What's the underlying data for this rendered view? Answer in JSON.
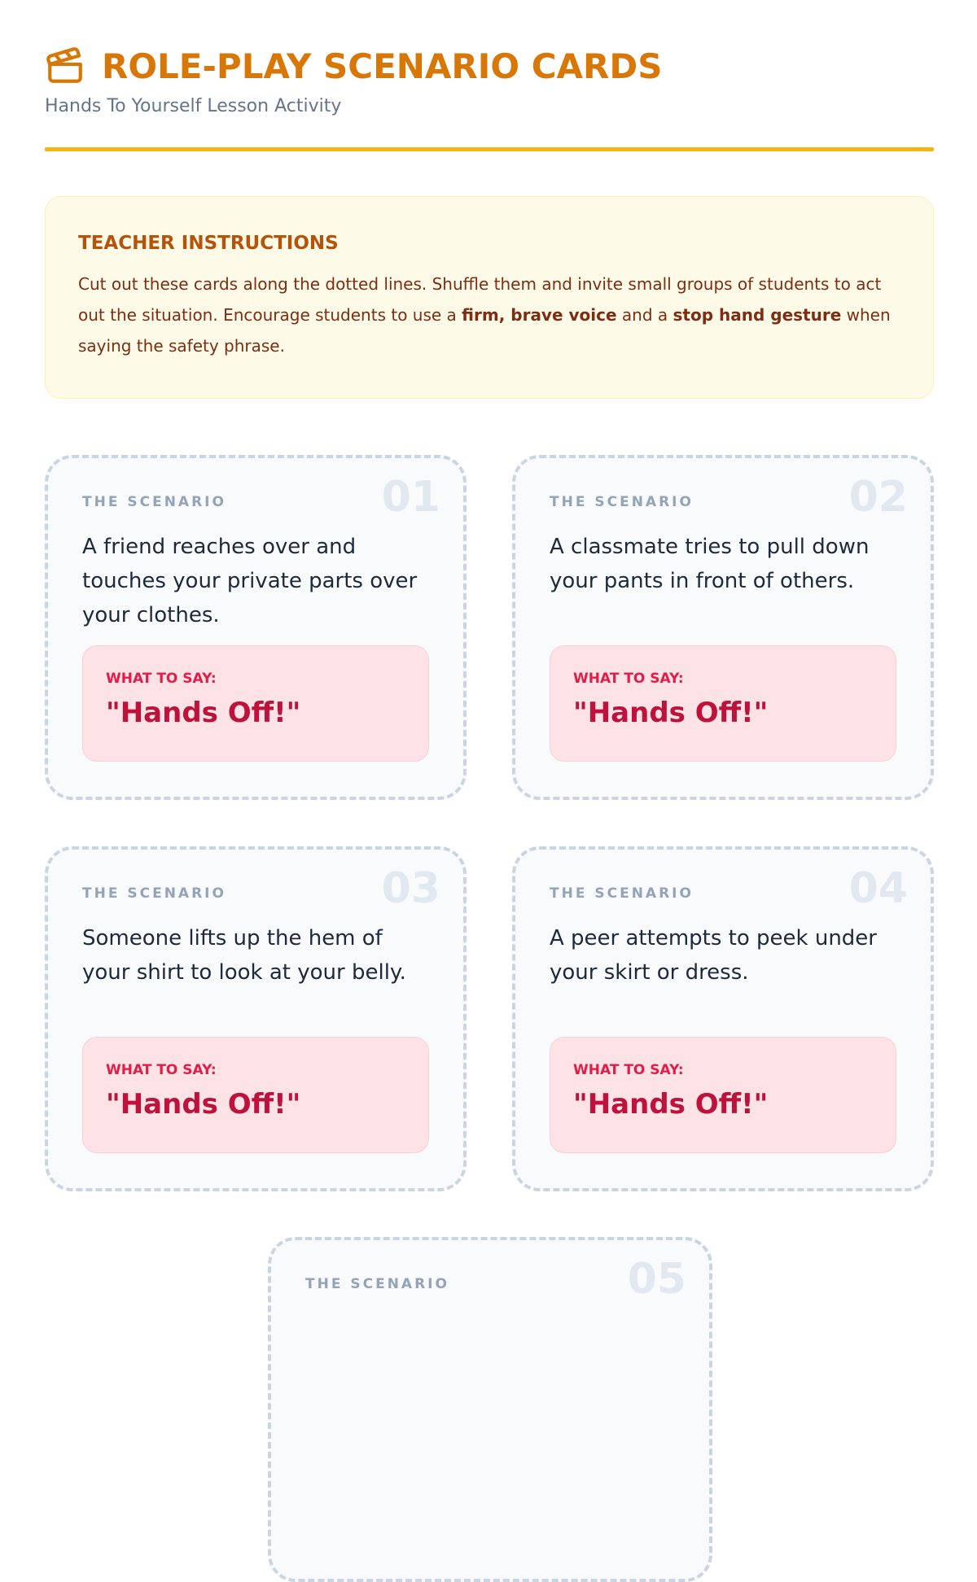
{
  "header": {
    "icon": "clapperboard-icon",
    "title": "ROLE-PLAY SCENARIO CARDS",
    "subtitle": "Hands To Yourself Lesson Activity",
    "accent": "#d97706"
  },
  "instructions": {
    "heading": "TEACHER INSTRUCTIONS",
    "text_1": "Cut out these cards along the dotted lines. Shuffle them and invite small groups of students to act out the situation. Encourage students to use a ",
    "bold_1": "firm, brave voice",
    "text_2": " and a ",
    "bold_2": "stop hand gesture",
    "text_3": " when saying the safety phrase."
  },
  "cards": [
    {
      "number": "01",
      "label": "THE SCENARIO",
      "scenario": "A friend reaches over and touches your private parts over your clothes.",
      "say_label": "WHAT TO SAY:",
      "phrase": "\"Hands Off!\""
    },
    {
      "number": "02",
      "label": "THE SCENARIO",
      "scenario": "A classmate tries to pull down your pants in front of others.",
      "say_label": "WHAT TO SAY:",
      "phrase": "\"Hands Off!\""
    },
    {
      "number": "03",
      "label": "THE SCENARIO",
      "scenario": "Someone lifts up the hem of your shirt to look at your belly.",
      "say_label": "WHAT TO SAY:",
      "phrase": "\"Hands Off!\""
    },
    {
      "number": "04",
      "label": "THE SCENARIO",
      "scenario": "A peer attempts to peek under your skirt or dress.",
      "say_label": "WHAT TO SAY:",
      "phrase": "\"Hands Off!\""
    },
    {
      "number": "05",
      "label": "THE SCENARIO"
    }
  ]
}
